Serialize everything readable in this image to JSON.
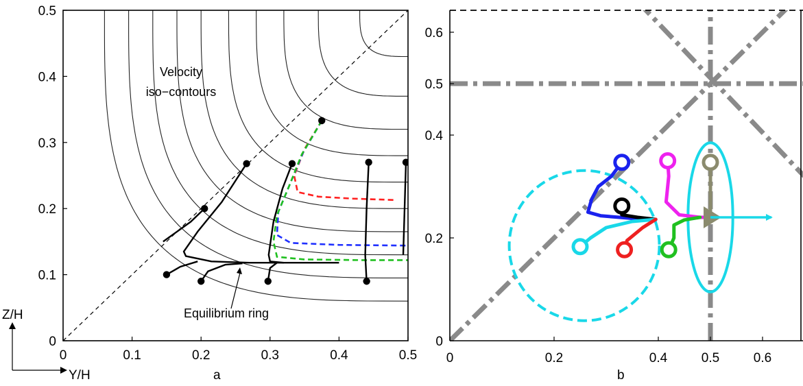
{
  "chart_data": [
    {
      "panel": "a",
      "type": "line",
      "panel_label": "a",
      "xlabel": "Y/H",
      "ylabel": "Z/H",
      "xlim": [
        0,
        0.5
      ],
      "ylim": [
        0,
        0.5
      ],
      "x_ticks": [
        "0",
        "0.1",
        "0.2",
        "0.3",
        "0.4",
        "0.5"
      ],
      "y_ticks": [
        "0",
        "0.1",
        "0.2",
        "0.3",
        "0.4",
        "0.5"
      ],
      "annotations": {
        "velocity_line1": "Velocity",
        "velocity_line2": "iso−contours",
        "ring": "Equilibrium ring"
      },
      "diagonal": [
        [
          0,
          0
        ],
        [
          0.5,
          0.5
        ]
      ],
      "contour_levels": [
        0.06,
        0.095,
        0.13,
        0.165,
        0.2,
        0.24,
        0.28,
        0.32,
        0.37,
        0.43
      ],
      "black_trajectories": [
        [
          [
            0.266,
            0.268
          ],
          [
            0.23,
            0.21
          ],
          [
            0.195,
            0.165
          ],
          [
            0.175,
            0.135
          ],
          [
            0.178,
            0.128
          ],
          [
            0.215,
            0.12
          ],
          [
            0.27,
            0.118
          ],
          [
            0.32,
            0.118
          ]
        ],
        [
          [
            0.205,
            0.2
          ],
          [
            0.185,
            0.18
          ],
          [
            0.145,
            0.15
          ]
        ],
        [
          [
            0.15,
            0.1
          ],
          [
            0.17,
            0.112
          ],
          [
            0.195,
            0.12
          ]
        ],
        [
          [
            0.2,
            0.09
          ],
          [
            0.21,
            0.105
          ],
          [
            0.235,
            0.115
          ],
          [
            0.26,
            0.117
          ]
        ],
        [
          [
            0.297,
            0.09
          ],
          [
            0.3,
            0.11
          ],
          [
            0.31,
            0.118
          ]
        ],
        [
          [
            0.332,
            0.268
          ],
          [
            0.318,
            0.23
          ],
          [
            0.305,
            0.18
          ],
          [
            0.298,
            0.13
          ],
          [
            0.3,
            0.12
          ],
          [
            0.32,
            0.118
          ],
          [
            0.4,
            0.118
          ]
        ],
        [
          [
            0.443,
            0.27
          ],
          [
            0.44,
            0.2
          ],
          [
            0.438,
            0.13
          ],
          [
            0.44,
            0.09
          ]
        ],
        [
          [
            0.497,
            0.27
          ],
          [
            0.495,
            0.2
          ],
          [
            0.493,
            0.13
          ]
        ]
      ],
      "markers": [
        [
          0.375,
          0.333
        ],
        [
          0.266,
          0.268
        ],
        [
          0.332,
          0.268
        ],
        [
          0.443,
          0.27
        ],
        [
          0.497,
          0.27
        ],
        [
          0.205,
          0.2
        ],
        [
          0.15,
          0.1
        ],
        [
          0.2,
          0.09
        ],
        [
          0.297,
          0.09
        ],
        [
          0.44,
          0.09
        ]
      ],
      "colored_dashed": [
        {
          "color": "#ff2020",
          "points": [
            [
              0.375,
              0.333
            ],
            [
              0.35,
              0.29
            ],
            [
              0.335,
              0.25
            ],
            [
              0.34,
              0.225
            ],
            [
              0.37,
              0.218
            ],
            [
              0.42,
              0.215
            ],
            [
              0.48,
              0.213
            ]
          ]
        },
        {
          "color": "#2030ff",
          "points": [
            [
              0.375,
              0.333
            ],
            [
              0.348,
              0.285
            ],
            [
              0.33,
              0.24
            ],
            [
              0.312,
              0.195
            ],
            [
              0.31,
              0.16
            ],
            [
              0.33,
              0.148
            ],
            [
              0.4,
              0.145
            ],
            [
              0.5,
              0.144
            ]
          ]
        },
        {
          "color": "#20c020",
          "points": [
            [
              0.375,
              0.333
            ],
            [
              0.346,
              0.282
            ],
            [
              0.328,
              0.235
            ],
            [
              0.31,
              0.19
            ],
            [
              0.305,
              0.15
            ],
            [
              0.31,
              0.127
            ],
            [
              0.35,
              0.123
            ],
            [
              0.43,
              0.122
            ],
            [
              0.5,
              0.122
            ]
          ]
        }
      ]
    },
    {
      "panel": "b",
      "type": "scatter",
      "panel_label": "b",
      "xlim": [
        0,
        0.68
      ],
      "ylim": [
        0,
        0.66
      ],
      "x_ticks": [
        "0",
        "0.2",
        "0.4",
        "0.5",
        "0.6"
      ],
      "x_tick_values": [
        0,
        0.2,
        0.4,
        0.5,
        0.6
      ],
      "y_ticks": [
        "0",
        "0.2",
        "0.4",
        "0.5",
        "0.6"
      ],
      "y_tick_values": [
        0,
        0.2,
        0.4,
        0.5,
        0.6
      ],
      "colors": {
        "grey": "#8a8a8a",
        "cyan": "#19d8e8",
        "olive": "#8b8b6e"
      },
      "trajectories": [
        {
          "color": "#1a22ee",
          "start": [
            0.33,
            0.347
          ],
          "points": [
            [
              0.31,
              0.32
            ],
            [
              0.285,
              0.3
            ],
            [
              0.272,
              0.275
            ],
            [
              0.265,
              0.25
            ],
            [
              0.29,
              0.243
            ],
            [
              0.35,
              0.238
            ],
            [
              0.395,
              0.236
            ]
          ]
        },
        {
          "color": "#000000",
          "start": [
            0.33,
            0.262
          ],
          "points": [
            [
              0.33,
              0.245
            ],
            [
              0.36,
              0.24
            ],
            [
              0.395,
              0.236
            ]
          ]
        },
        {
          "color": "#ee22ee",
          "start": [
            0.418,
            0.35
          ],
          "points": [
            [
              0.42,
              0.32
            ],
            [
              0.415,
              0.27
            ],
            [
              0.44,
              0.245
            ],
            [
              0.48,
              0.24
            ],
            [
              0.5,
              0.24
            ]
          ]
        },
        {
          "color": "#8b8b6e",
          "start": [
            0.5,
            0.347
          ],
          "points": [
            [
              0.5,
              0.3
            ],
            [
              0.5,
              0.24
            ]
          ]
        },
        {
          "color": "#19d8e8",
          "start": [
            0.25,
            0.183
          ],
          "points": [
            [
              0.27,
              0.2
            ],
            [
              0.3,
              0.22
            ],
            [
              0.35,
              0.232
            ],
            [
              0.395,
              0.236
            ]
          ]
        },
        {
          "color": "#ee2020",
          "start": [
            0.335,
            0.177
          ],
          "points": [
            [
              0.34,
              0.195
            ],
            [
              0.37,
              0.22
            ],
            [
              0.395,
              0.236
            ]
          ]
        },
        {
          "color": "#20c020",
          "start": [
            0.42,
            0.177
          ],
          "points": [
            [
              0.43,
              0.2
            ],
            [
              0.43,
              0.225
            ],
            [
              0.45,
              0.235
            ],
            [
              0.48,
              0.24
            ]
          ]
        }
      ],
      "arrow": {
        "from": [
          0.5,
          0.24
        ],
        "to": [
          0.617,
          0.24
        ],
        "color": "#19d8e8"
      },
      "triangle": {
        "at": [
          0.5,
          0.24
        ],
        "color": "#8b8b6e"
      },
      "dashed_circle": {
        "center": [
          0.258,
          0.185
        ],
        "radius": 0.145,
        "color": "#19d8e8"
      },
      "ellipse": {
        "center": [
          0.5,
          0.24
        ],
        "rx": 0.043,
        "ry": 0.145,
        "color": "#19d8e8"
      }
    }
  ]
}
